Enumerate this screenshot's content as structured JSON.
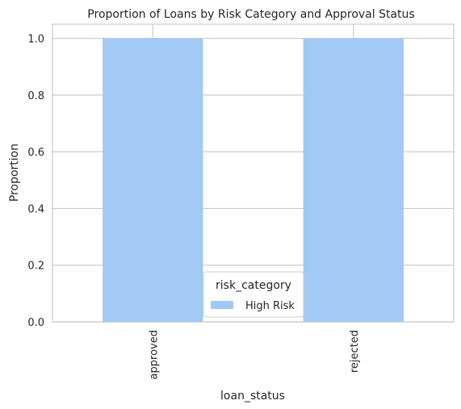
{
  "chart_data": {
    "type": "bar",
    "title": "Proportion of Loans by Risk Category and Approval Status",
    "xlabel": "loan_status",
    "ylabel": "Proportion",
    "categories": [
      "approved",
      "rejected"
    ],
    "series": [
      {
        "name": "High Risk",
        "values": [
          1.0,
          1.0
        ],
        "color": "#a1c9f4"
      }
    ],
    "ylim": [
      0,
      1.05
    ],
    "yticks": [
      "0.0",
      "0.2",
      "0.4",
      "0.6",
      "0.8",
      "1.0"
    ],
    "grid": true,
    "legend": {
      "title": "risk_category",
      "placement": "lower-center"
    }
  }
}
